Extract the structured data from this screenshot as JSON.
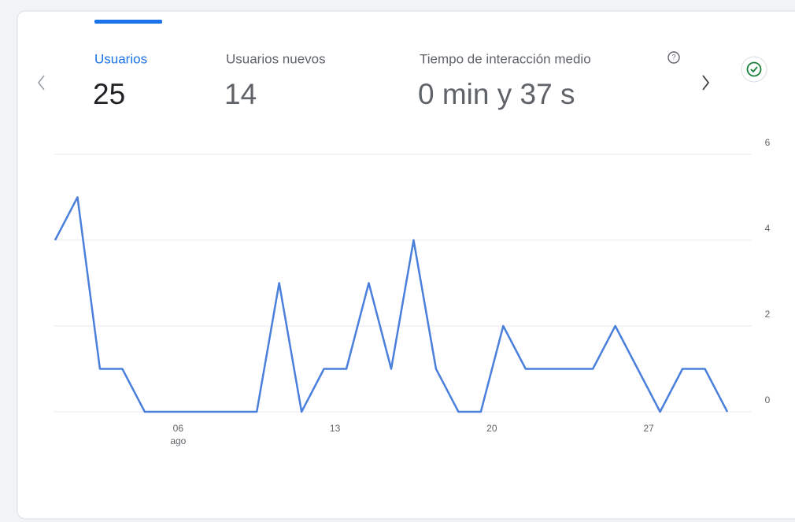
{
  "metrics": [
    {
      "label": "Usuarios",
      "value": "25"
    },
    {
      "label": "Usuarios nuevos",
      "value": "14"
    },
    {
      "label": "Tiempo de interacción medio",
      "value": "0 min y 37 s"
    }
  ],
  "chart_data": {
    "type": "line",
    "categories": [
      null,
      null,
      null,
      null,
      null,
      "06",
      null,
      null,
      null,
      null,
      null,
      null,
      "13",
      null,
      null,
      null,
      null,
      null,
      null,
      "20",
      null,
      null,
      null,
      null,
      null,
      null,
      "27",
      null,
      null,
      null,
      null
    ],
    "month_label": "ago",
    "series": [
      {
        "name": "Usuarios",
        "color": "#4a7fdb",
        "values": [
          4,
          5,
          1,
          1,
          0,
          0,
          0,
          0,
          0,
          0,
          3,
          0,
          1,
          1,
          3,
          1,
          4,
          1,
          0,
          0,
          2,
          1,
          1,
          1,
          1,
          2,
          1,
          0,
          1,
          1,
          0
        ]
      }
    ],
    "ylim": [
      0,
      6
    ],
    "yticks": [
      0,
      2,
      4,
      6
    ],
    "grid": true
  }
}
